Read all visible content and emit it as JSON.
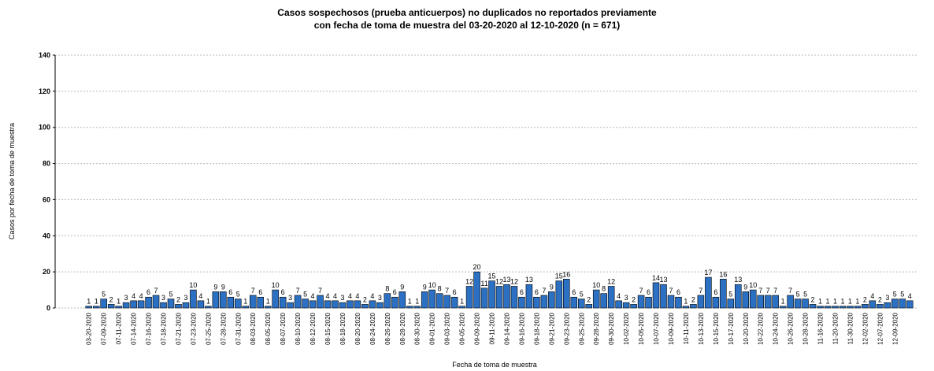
{
  "chart_data": {
    "type": "bar",
    "title": [
      "Casos sospechosos (prueba anticuerpos) no duplicados no reportados previamente",
      "con fecha de toma de muestra del 03-20-2020 al 12-10-2020 (n = 671)"
    ],
    "x_label": "Fecha de toma de muestra",
    "y_label": "Casos por fecha de toma de muestra",
    "categories": [
      "03-20-2020",
      null,
      "07-09-2020",
      null,
      "07-11-2020",
      null,
      "07-14-2020",
      null,
      "07-16-2020",
      null,
      "07-18-2020",
      null,
      "07-21-2020",
      null,
      "07-23-2020",
      null,
      "07-25-2020",
      null,
      "07-28-2020",
      null,
      "07-31-2020",
      null,
      "08-03-2020",
      null,
      "08-05-2020",
      null,
      "08-07-2020",
      null,
      "08-10-2020",
      null,
      "08-12-2020",
      null,
      "08-15-2020",
      null,
      "08-18-2020",
      null,
      "08-20-2020",
      null,
      "08-24-2020",
      null,
      "08-26-2020",
      null,
      "08-28-2020",
      null,
      "08-30-2020",
      null,
      "09-01-2020",
      null,
      "09-03-2020",
      null,
      "09-05-2020",
      null,
      "09-09-2020",
      null,
      "09-11-2020",
      null,
      "09-14-2020",
      null,
      "09-16-2020",
      null,
      "09-18-2020",
      null,
      "09-21-2020",
      null,
      "09-23-2020",
      null,
      "09-25-2020",
      null,
      "09-28-2020",
      null,
      "09-30-2020",
      null,
      "10-02-2020",
      null,
      "10-05-2020",
      null,
      "10-07-2020",
      null,
      "10-09-2020",
      null,
      "10-11-2020",
      null,
      "10-13-2020",
      null,
      "10-15-2020",
      null,
      "10-17-2020",
      null,
      "10-20-2020",
      null,
      "10-22-2020",
      null,
      "10-24-2020",
      null,
      "10-26-2020",
      null,
      "10-28-2020",
      null,
      "11-16-2020",
      null,
      "11-20-2020",
      null,
      "11-30-2020",
      null,
      "12-02-2020",
      null,
      "12-07-2020",
      null,
      "12-09-2020",
      null,
      null
    ],
    "values": [
      1,
      1,
      5,
      2,
      1,
      3,
      4,
      4,
      6,
      7,
      3,
      5,
      2,
      3,
      10,
      4,
      1,
      9,
      9,
      6,
      5,
      1,
      7,
      6,
      1,
      10,
      6,
      3,
      7,
      5,
      4,
      7,
      4,
      4,
      3,
      4,
      4,
      2,
      4,
      3,
      8,
      6,
      9,
      1,
      1,
      9,
      10,
      8,
      7,
      6,
      1,
      12,
      20,
      11,
      15,
      12,
      13,
      12,
      6,
      13,
      6,
      7,
      9,
      15,
      16,
      6,
      5,
      2,
      10,
      8,
      12,
      4,
      3,
      2,
      7,
      6,
      14,
      13,
      7,
      6,
      1,
      2,
      7,
      17,
      6,
      16,
      5,
      13,
      9,
      10,
      7,
      7,
      7,
      1,
      7,
      5,
      5,
      2,
      1,
      1,
      1,
      1,
      1,
      1,
      2,
      4,
      2,
      3,
      5,
      5,
      4
    ],
    "color": "#2b70c2",
    "ylim": [
      0,
      140
    ],
    "yticks": [
      0,
      20,
      40,
      60,
      80,
      100,
      120,
      140
    ],
    "grid": true
  }
}
